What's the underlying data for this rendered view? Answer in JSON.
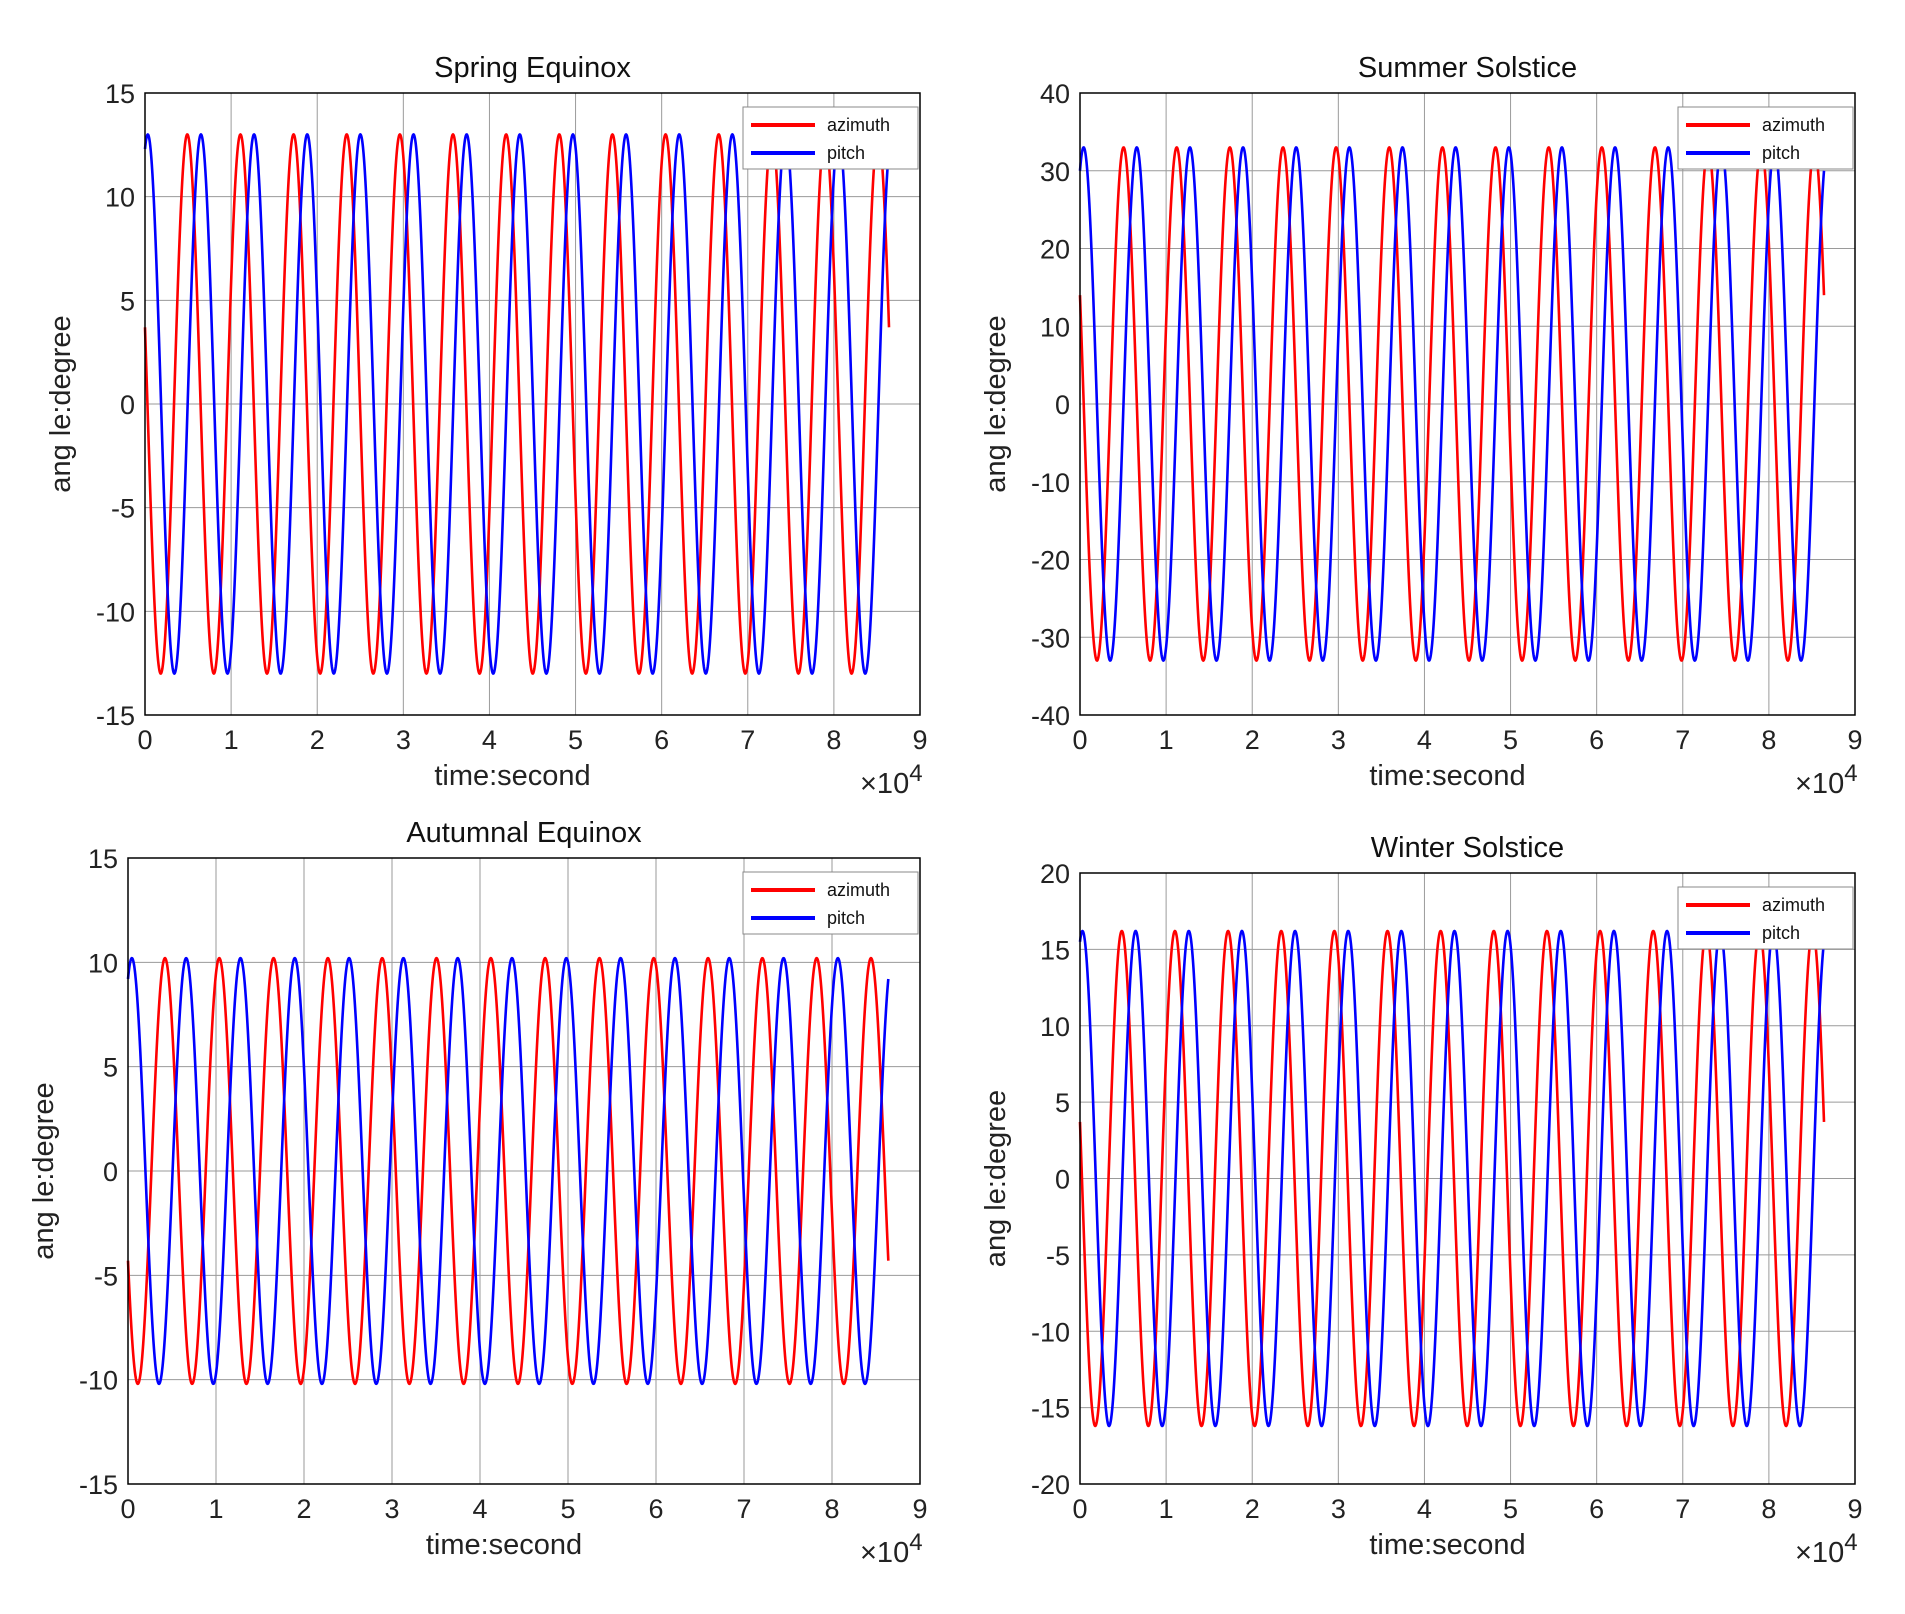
{
  "chart_data": [
    {
      "type": "line",
      "title": "Spring Equinox",
      "xlabel": "time:second",
      "ylabel": "ang le:degree",
      "x_multiplier": "×10",
      "x_exponent": "4",
      "xlim": [
        0,
        9
      ],
      "ylim": [
        -15,
        15
      ],
      "xticks": [
        "0",
        "1",
        "2",
        "3",
        "4",
        "5",
        "6",
        "7",
        "8",
        "9"
      ],
      "yticks": [
        "-15",
        "-10",
        "-5",
        "0",
        "5",
        "10",
        "15"
      ],
      "grid": true,
      "legend_position": "top-right",
      "x_end": 8.64,
      "cycles": 14,
      "series": [
        {
          "name": "azimuth",
          "color": "#ff0000",
          "amplitude": 13,
          "start_value": 3.7
        },
        {
          "name": "pitch",
          "color": "#0000ff",
          "amplitude": 13,
          "start_value": 12.3
        }
      ]
    },
    {
      "type": "line",
      "title": "Summer Solstice",
      "xlabel": "time:second",
      "ylabel": "ang le:degree",
      "x_multiplier": "×10",
      "x_exponent": "4",
      "xlim": [
        0,
        9
      ],
      "ylim": [
        -40,
        40
      ],
      "xticks": [
        "0",
        "1",
        "2",
        "3",
        "4",
        "5",
        "6",
        "7",
        "8",
        "9"
      ],
      "yticks": [
        "-40",
        "-30",
        "-20",
        "-10",
        "0",
        "10",
        "20",
        "30",
        "40"
      ],
      "grid": true,
      "legend_position": "top-right",
      "x_end": 8.64,
      "cycles": 14,
      "series": [
        {
          "name": "azimuth",
          "color": "#ff0000",
          "amplitude": 33,
          "start_value": 14
        },
        {
          "name": "pitch",
          "color": "#0000ff",
          "amplitude": 33,
          "start_value": 30
        }
      ]
    },
    {
      "type": "line",
      "title": "Autumnal Equinox",
      "xlabel": "time:second",
      "ylabel": "ang le:degree",
      "x_multiplier": "×10",
      "x_exponent": "4",
      "xlim": [
        0,
        9
      ],
      "ylim": [
        -15,
        15
      ],
      "xticks": [
        "0",
        "1",
        "2",
        "3",
        "4",
        "5",
        "6",
        "7",
        "8",
        "9"
      ],
      "yticks": [
        "-15",
        "-10",
        "-5",
        "0",
        "5",
        "10",
        "15"
      ],
      "grid": true,
      "legend_position": "top-right",
      "x_end": 8.64,
      "cycles": 14,
      "series": [
        {
          "name": "azimuth",
          "color": "#ff0000",
          "amplitude": 10.2,
          "start_value": -4.3
        },
        {
          "name": "pitch",
          "color": "#0000ff",
          "amplitude": 10.2,
          "start_value": 9.2
        }
      ]
    },
    {
      "type": "line",
      "title": "Winter Solstice",
      "xlabel": "time:second",
      "ylabel": "ang le:degree",
      "x_multiplier": "×10",
      "x_exponent": "4",
      "xlim": [
        0,
        9
      ],
      "ylim": [
        -20,
        20
      ],
      "xticks": [
        "0",
        "1",
        "2",
        "3",
        "4",
        "5",
        "6",
        "7",
        "8",
        "9"
      ],
      "yticks": [
        "-20",
        "-15",
        "-10",
        "-5",
        "0",
        "5",
        "10",
        "15",
        "20"
      ],
      "grid": true,
      "legend_position": "top-right",
      "x_end": 8.64,
      "cycles": 14,
      "series": [
        {
          "name": "azimuth",
          "color": "#ff0000",
          "amplitude": 16.2,
          "start_value": 3.7
        },
        {
          "name": "pitch",
          "color": "#0000ff",
          "amplitude": 16.2,
          "start_value": 15.5
        }
      ]
    }
  ]
}
